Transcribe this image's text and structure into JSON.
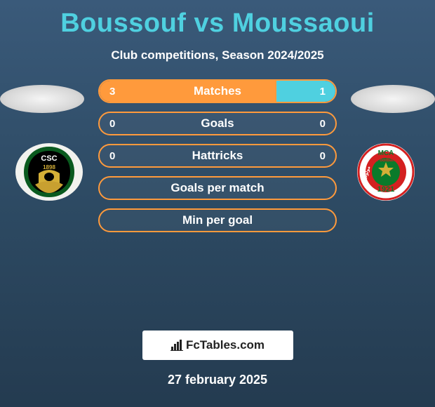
{
  "title": "Boussouf vs Moussaoui",
  "subtitle": "Club competitions, Season 2024/2025",
  "date": "27 february 2025",
  "brand": "FcTables.com",
  "colors": {
    "title_color": "#4fd0e0",
    "subtitle_color": "#ffffff",
    "bar_border": "#ff9a3c",
    "left_fill": "#ff9a3c",
    "right_fill": "#4fd0e0",
    "background_top": "#3a5a7a",
    "background_bottom": "#243b50",
    "brand_bg": "#ffffff"
  },
  "clubs": {
    "left": {
      "name": "CSC",
      "colors": {
        "primary": "#0a5a1e",
        "secondary": "#000000",
        "accent": "#d4af37",
        "year": "1898"
      }
    },
    "right": {
      "name": "MCA",
      "label_top": "MCA",
      "label_sub": "Football",
      "year": "1921",
      "colors": {
        "primary": "#d42020",
        "secondary": "#0a7a2a",
        "star": "#d4af37",
        "border": "#ffffff"
      }
    }
  },
  "stats": [
    {
      "label": "Matches",
      "left_val": "3",
      "right_val": "1",
      "left_pct": 75,
      "right_pct": 25
    },
    {
      "label": "Goals",
      "left_val": "0",
      "right_val": "0",
      "left_pct": 0,
      "right_pct": 0
    },
    {
      "label": "Hattricks",
      "left_val": "0",
      "right_val": "0",
      "left_pct": 0,
      "right_pct": 0
    },
    {
      "label": "Goals per match",
      "left_val": "",
      "right_val": "",
      "left_pct": 0,
      "right_pct": 0
    },
    {
      "label": "Min per goal",
      "left_val": "",
      "right_val": "",
      "left_pct": 0,
      "right_pct": 0
    }
  ]
}
